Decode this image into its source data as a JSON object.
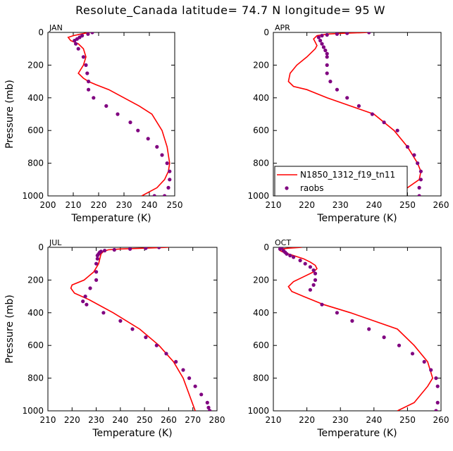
{
  "figure": {
    "title": "Resolute_Canada  latitude= 74.7 N longitude= 95 W"
  },
  "colors": {
    "model": "#ff0000",
    "obs": "#800080",
    "axes": "#000000"
  },
  "chart_data": [
    {
      "type": "line",
      "panel_label": "JAN",
      "xlabel": "Temperature (K)",
      "ylabel": "Pressure (mb)",
      "xlim": [
        200,
        250
      ],
      "ylim": [
        1000,
        0
      ],
      "xticks": [
        200,
        210,
        220,
        230,
        240,
        250
      ],
      "yticks": [
        0,
        200,
        400,
        600,
        800,
        1000
      ],
      "series": [
        {
          "name": "N1850_1312_f19_tn11",
          "kind": "line",
          "x": [
            216.5,
            213,
            210,
            208,
            209,
            212,
            214,
            215,
            214,
            212,
            214,
            216,
            219,
            224,
            230,
            236,
            241,
            245,
            247,
            248,
            247.5,
            246,
            243,
            237
          ],
          "y": [
            0,
            10,
            20,
            30,
            50,
            70,
            100,
            150,
            200,
            250,
            280,
            300,
            320,
            350,
            400,
            450,
            500,
            600,
            700,
            800,
            850,
            900,
            950,
            1000
          ]
        },
        {
          "name": "raobs",
          "kind": "scatter",
          "x": [
            217.5,
            215.8,
            213.5,
            212.5,
            211.5,
            210.5,
            211,
            212,
            214,
            215,
            215.5,
            216,
            216,
            218,
            223,
            227.5,
            232.5,
            235.5,
            239.5,
            243,
            245,
            247,
            248,
            248,
            247.5,
            246,
            242
          ],
          "y": [
            0,
            10,
            20,
            30,
            40,
            50,
            70,
            100,
            150,
            200,
            250,
            300,
            350,
            400,
            450,
            500,
            550,
            600,
            650,
            700,
            750,
            800,
            850,
            900,
            950,
            1000,
            1000
          ]
        }
      ]
    },
    {
      "type": "line",
      "panel_label": "APR",
      "xlabel": "Temperature (K)",
      "ylabel": "",
      "xlim": [
        210,
        260
      ],
      "ylim": [
        1000,
        0
      ],
      "xticks": [
        210,
        220,
        230,
        240,
        250,
        260
      ],
      "yticks": [
        0,
        200,
        400,
        600,
        800,
        1000
      ],
      "legend": {
        "placement": "lower-left",
        "entries": [
          "N1850_1312_f19_tn11",
          "raobs"
        ]
      },
      "series": [
        {
          "name": "N1850_1312_f19_tn11",
          "kind": "line",
          "x": [
            238.5,
            231,
            226,
            223,
            222,
            222.5,
            223,
            222.5,
            220,
            217,
            215,
            214.5,
            216,
            220,
            226,
            233,
            240,
            246,
            250,
            253,
            254,
            253.5,
            250,
            243
          ],
          "y": [
            0,
            5,
            10,
            20,
            40,
            60,
            80,
            100,
            150,
            200,
            250,
            300,
            330,
            350,
            400,
            450,
            500,
            600,
            700,
            800,
            850,
            900,
            950,
            1000
          ]
        },
        {
          "name": "raobs",
          "kind": "scatter",
          "x": [
            238.5,
            232,
            229,
            226,
            224.5,
            223.5,
            224,
            224.5,
            225,
            225.5,
            226,
            226,
            226,
            226,
            227,
            229,
            232,
            235.5,
            239.5,
            243,
            247,
            250,
            252,
            253,
            254,
            254,
            253.5,
            253.5
          ],
          "y": [
            0,
            5,
            10,
            15,
            20,
            30,
            50,
            70,
            90,
            110,
            130,
            150,
            200,
            250,
            300,
            350,
            400,
            450,
            500,
            550,
            600,
            700,
            750,
            800,
            850,
            900,
            950,
            1000
          ]
        }
      ]
    },
    {
      "type": "line",
      "panel_label": "JUL",
      "xlabel": "Temperature (K)",
      "ylabel": "Pressure (mb)",
      "xlim": [
        210,
        280
      ],
      "ylim": [
        1000,
        0
      ],
      "xticks": [
        210,
        220,
        230,
        240,
        250,
        260,
        270,
        280
      ],
      "yticks": [
        0,
        200,
        400,
        600,
        800,
        1000
      ],
      "series": [
        {
          "name": "N1850_1312_f19_tn11",
          "kind": "line",
          "x": [
            260,
            250,
            240,
            235,
            233,
            232,
            231.5,
            231,
            229,
            225,
            220,
            219.5,
            221,
            227,
            237,
            248,
            256,
            262,
            266,
            271
          ],
          "y": [
            0,
            5,
            10,
            15,
            25,
            40,
            70,
            100,
            150,
            200,
            230,
            250,
            280,
            320,
            400,
            500,
            600,
            700,
            800,
            1000
          ]
        },
        {
          "name": "raobs",
          "kind": "scatter",
          "x": [
            256,
            250.5,
            244,
            237.5,
            233.5,
            232,
            231.5,
            231,
            230.5,
            230.5,
            230,
            230,
            230,
            227.5,
            225.5,
            224.5,
            226,
            233,
            240,
            245,
            250.5,
            255,
            259,
            263,
            266,
            268.5,
            271,
            273.5,
            276,
            276.5,
            277,
            277,
            277
          ],
          "y": [
            0,
            5,
            10,
            15,
            20,
            25,
            30,
            40,
            50,
            70,
            100,
            150,
            200,
            250,
            300,
            330,
            350,
            400,
            450,
            500,
            550,
            600,
            650,
            700,
            750,
            800,
            850,
            900,
            950,
            980,
            1000,
            1000,
            1000
          ]
        }
      ]
    },
    {
      "type": "line",
      "panel_label": "OCT",
      "xlabel": "Temperature (K)",
      "ylabel": "",
      "xlim": [
        210,
        260
      ],
      "ylim": [
        1000,
        0
      ],
      "xticks": [
        210,
        220,
        230,
        240,
        250,
        260
      ],
      "yticks": [
        0,
        200,
        400,
        600,
        800,
        1000
      ],
      "series": [
        {
          "name": "N1850_1312_f19_tn11",
          "kind": "line",
          "x": [
            218.5,
            214.5,
            212.5,
            212,
            213,
            216,
            219,
            221,
            222.5,
            223,
            222,
            219,
            216,
            214.5,
            215.5,
            219,
            225,
            233,
            240,
            247,
            252,
            256,
            257.5,
            256,
            252,
            247
          ],
          "y": [
            0,
            5,
            10,
            20,
            30,
            50,
            70,
            90,
            110,
            130,
            150,
            180,
            210,
            240,
            270,
            300,
            350,
            400,
            450,
            500,
            600,
            700,
            800,
            850,
            950,
            1000
          ]
        },
        {
          "name": "raobs",
          "kind": "scatter",
          "x": [
            212.5,
            212,
            213,
            213.5,
            214,
            215,
            216,
            218,
            219.5,
            221,
            222,
            222.5,
            222.5,
            222,
            221,
            224.5,
            229,
            233.5,
            238.5,
            243,
            247.5,
            251.5,
            255,
            257,
            258.5,
            259,
            259,
            258.5
          ],
          "y": [
            0,
            10,
            20,
            30,
            40,
            50,
            60,
            80,
            100,
            120,
            140,
            160,
            200,
            230,
            260,
            350,
            400,
            450,
            500,
            550,
            600,
            650,
            700,
            750,
            800,
            850,
            950,
            1000
          ]
        }
      ]
    }
  ]
}
